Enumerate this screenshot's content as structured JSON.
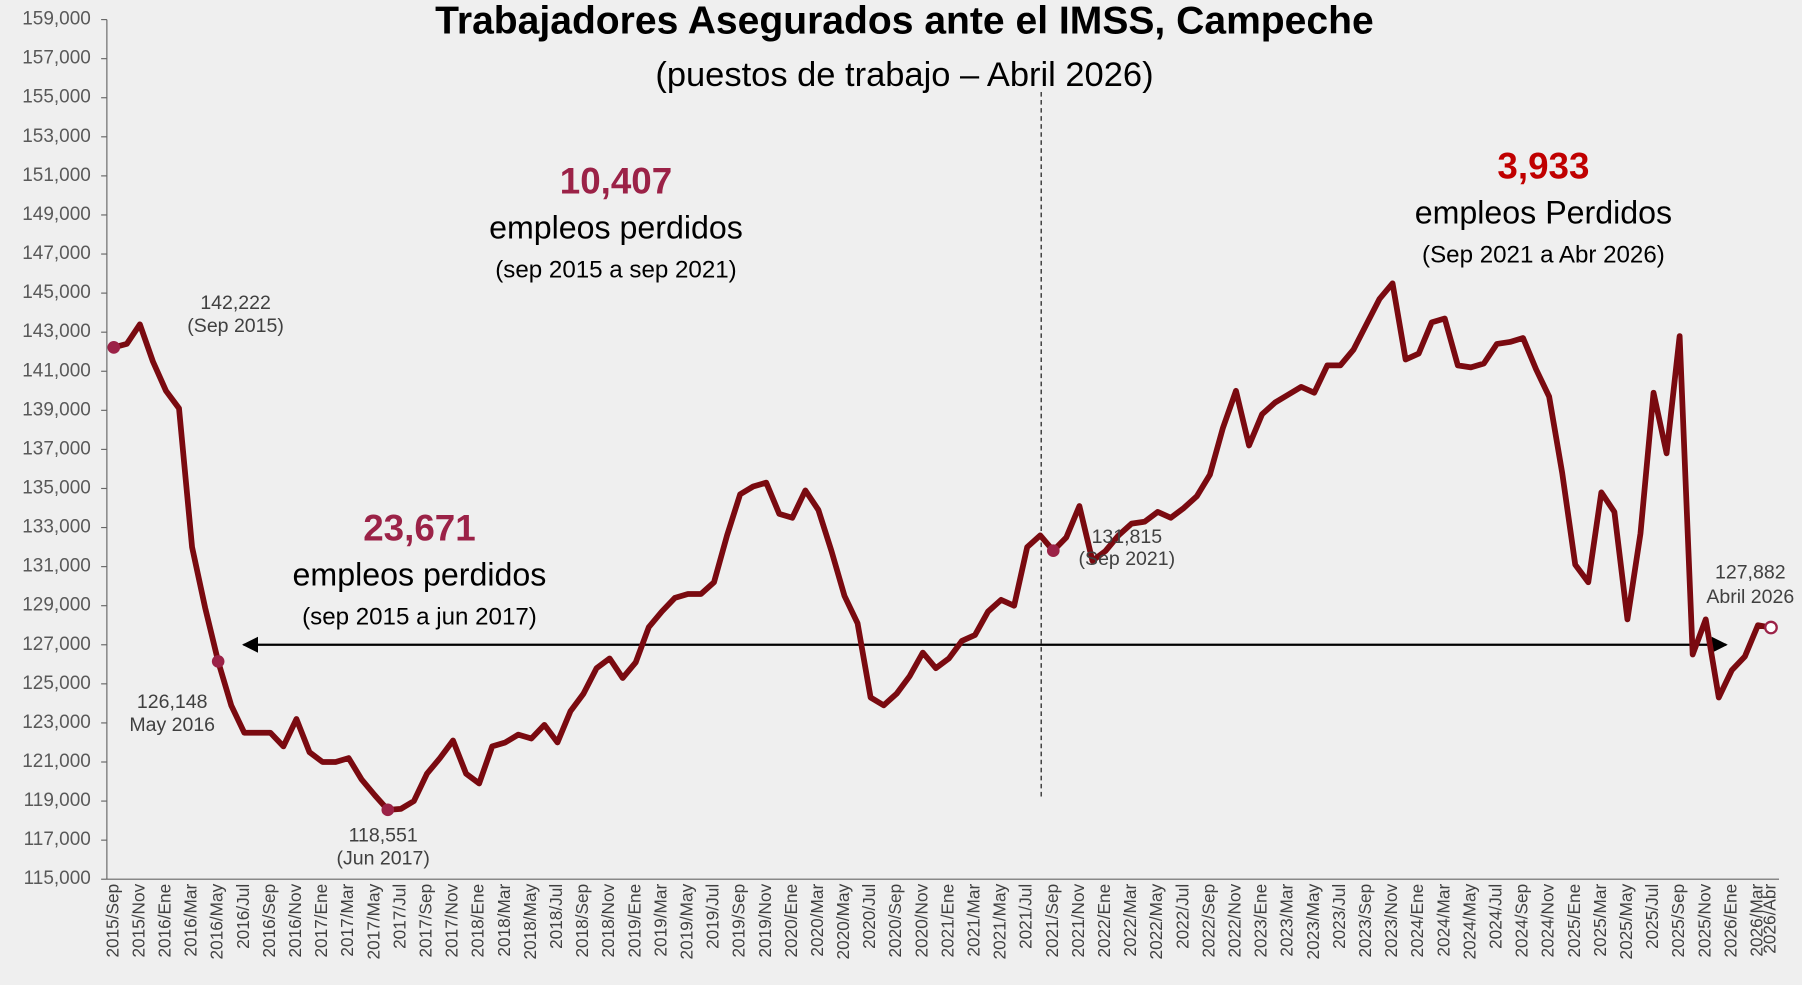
{
  "chart_data": {
    "type": "line",
    "title": "Trabajadores Asegurados ante el IMSS, Campeche",
    "subtitle": "(puestos de trabajo – Abril 2026)",
    "categories": [
      "2015/Sep",
      null,
      "2015/Nov",
      null,
      "2016/Ene",
      null,
      "2016/Mar",
      null,
      "2016/May",
      null,
      "2016/Jul",
      null,
      "2016/Sep",
      null,
      "2016/Nov",
      null,
      "2017/Ene",
      null,
      "2017/Mar",
      null,
      "2017/May",
      null,
      "2017/Jul",
      null,
      "2017/Sep",
      null,
      "2017/Nov",
      null,
      "2018/Ene",
      null,
      "2018/Mar",
      null,
      "2018/May",
      null,
      "2018/Jul",
      null,
      "2018/Sep",
      null,
      "2018/Nov",
      null,
      "2019/Ene",
      null,
      "2019/Mar",
      null,
      "2019/May",
      null,
      "2019/Jul",
      null,
      "2019/Sep",
      null,
      "2019/Nov",
      null,
      "2020/Ene",
      null,
      "2020/Mar",
      null,
      "2020/May",
      null,
      "2020/Jul",
      null,
      "2020/Sep",
      null,
      "2020/Nov",
      null,
      "2021/Ene",
      null,
      "2021/Mar",
      null,
      "2021/May",
      null,
      "2021/Jul",
      null,
      "2021/Sep",
      null,
      "2021/Nov",
      null,
      "2022/Ene",
      null,
      "2022/Mar",
      null,
      "2022/May",
      null,
      "2022/Jul",
      null,
      "2022/Sep",
      null,
      "2022/Nov",
      null,
      "2023/Ene",
      null,
      "2023/Mar",
      null,
      "2023/May",
      null,
      "2023/Jul",
      null,
      "2023/Sep",
      null,
      "2023/Nov",
      null,
      "2024/Ene",
      null,
      "2024/Mar",
      null,
      "2024/May",
      null,
      "2024/Jul",
      null,
      "2024/Sep",
      null,
      "2024/Nov",
      null,
      "2025/Ene",
      null,
      "2025/Mar",
      null,
      "2025/May",
      null,
      "2025/Jul",
      null,
      "2025/Sep",
      null,
      "2025/Nov",
      null,
      "2026/Ene",
      null,
      "2026/Mar",
      "2026/Abr"
    ],
    "series": [
      {
        "color": "#7a0a10",
        "values": [
          142222,
          142400,
          143400,
          141500,
          140000,
          139100,
          132000,
          128900,
          126148,
          123900,
          122500,
          122500,
          122500,
          121800,
          123200,
          121500,
          121000,
          121000,
          121200,
          120100,
          119300,
          118551,
          118600,
          119000,
          120400,
          121200,
          122100,
          120400,
          119900,
          121800,
          122000,
          122400,
          122200,
          122900,
          122000,
          123600,
          124500,
          125800,
          126300,
          125300,
          126100,
          127900,
          128700,
          129400,
          129600,
          129600,
          130200,
          132600,
          134700,
          135100,
          135300,
          133700,
          133500,
          134900,
          133900,
          131800,
          129500,
          128100,
          124300,
          123900,
          124500,
          125400,
          126600,
          125800,
          126300,
          127200,
          127500,
          128700,
          129300,
          129000,
          132000,
          132600,
          131815,
          132500,
          134100,
          131300,
          131800,
          132600,
          133200,
          133300,
          133800,
          133500,
          134000,
          134600,
          135700,
          138100,
          140000,
          137200,
          138800,
          139400,
          139800,
          140200,
          139900,
          141300,
          141300,
          142100,
          143400,
          144700,
          145500,
          141600,
          141900,
          143500,
          143700,
          141300,
          141200,
          141400,
          142400,
          142500,
          142700,
          141100,
          139700,
          135800,
          131100,
          130200,
          134800,
          133800,
          128300,
          132700,
          139900,
          136800,
          142800,
          126500,
          128300,
          124300,
          125700,
          126400,
          128000,
          127882
        ],
        "value_labels": [
          "142,222",
          null,
          null,
          null,
          null,
          null,
          null,
          null,
          "126,148",
          null,
          null,
          null,
          null,
          null,
          null,
          null,
          null,
          null,
          null,
          null,
          null,
          "118,551",
          null,
          null,
          null,
          null,
          null,
          null,
          null,
          null,
          null,
          null,
          null,
          null,
          null,
          null,
          null,
          null,
          null,
          null,
          null,
          null,
          null,
          null,
          null,
          null,
          null,
          null,
          null,
          null,
          null,
          null,
          null,
          null,
          null,
          null,
          null,
          null,
          null,
          null,
          null,
          null,
          null,
          null,
          null,
          null,
          null,
          null,
          null,
          null,
          null,
          null,
          "131,815",
          null,
          null,
          null,
          null,
          null,
          null,
          null,
          null,
          null,
          null,
          null,
          null,
          null,
          null,
          null,
          null,
          null,
          null,
          null,
          null,
          null,
          null,
          null,
          null,
          null,
          null,
          null,
          null,
          null,
          null,
          null,
          null,
          null,
          null,
          null,
          null,
          null,
          null,
          null,
          null,
          null,
          null,
          null,
          null,
          null,
          null,
          null,
          null,
          null,
          null,
          null,
          null,
          null,
          null,
          "127,882"
        ],
        "point_notes": [
          "(Sep 2015)",
          null,
          null,
          null,
          null,
          null,
          null,
          null,
          "May 2016",
          null,
          null,
          null,
          null,
          null,
          null,
          null,
          null,
          null,
          null,
          null,
          null,
          "(Jun 2017)",
          null,
          null,
          null,
          null,
          null,
          null,
          null,
          null,
          null,
          null,
          null,
          null,
          null,
          null,
          null,
          null,
          null,
          null,
          null,
          null,
          null,
          null,
          null,
          null,
          null,
          null,
          null,
          null,
          null,
          null,
          null,
          null,
          null,
          null,
          null,
          null,
          null,
          null,
          null,
          null,
          null,
          null,
          null,
          null,
          null,
          null,
          null,
          null,
          null,
          null,
          "(Sep 2021)",
          null,
          null,
          null,
          null,
          null,
          null,
          null,
          null,
          null,
          null,
          null,
          null,
          null,
          null,
          null,
          null,
          null,
          null,
          null,
          null,
          null,
          null,
          null,
          null,
          null,
          null,
          null,
          null,
          null,
          null,
          null,
          null,
          null,
          null,
          null,
          null,
          null,
          null,
          null,
          null,
          null,
          null,
          null,
          null,
          null,
          null,
          null,
          null,
          null,
          null,
          null,
          null,
          null,
          null,
          "Abril 2026"
        ]
      }
    ],
    "ylim": [
      115000,
      159000
    ],
    "yticks": [
      {
        "value": 115000,
        "label": "115,000"
      },
      {
        "value": 117000,
        "label": "117,000"
      },
      {
        "value": 119000,
        "label": "119,000"
      },
      {
        "value": 121000,
        "label": "121,000"
      },
      {
        "value": 123000,
        "label": "123,000"
      },
      {
        "value": 125000,
        "label": "125,000"
      },
      {
        "value": 127000,
        "label": "127,000"
      },
      {
        "value": 129000,
        "label": "129,000"
      },
      {
        "value": 131000,
        "label": "131,000"
      },
      {
        "value": 133000,
        "label": "133,000"
      },
      {
        "value": 135000,
        "label": "135,000"
      },
      {
        "value": 137000,
        "label": "137,000"
      },
      {
        "value": 139000,
        "label": "139,000"
      },
      {
        "value": 141000,
        "label": "141,000"
      },
      {
        "value": 143000,
        "label": "143,000"
      },
      {
        "value": 145000,
        "label": "145,000"
      },
      {
        "value": 147000,
        "label": "147,000"
      },
      {
        "value": 149000,
        "label": "149,000"
      },
      {
        "value": 151000,
        "label": "151,000"
      },
      {
        "value": 153000,
        "label": "153,000"
      },
      {
        "value": 155000,
        "label": "155,000"
      },
      {
        "value": 157000,
        "label": "157,000"
      },
      {
        "value": 159000,
        "label": "159,000"
      }
    ],
    "grid": false,
    "annotations": [
      {
        "number": "10,407",
        "text": "empleos perdidos",
        "period": "(sep 2015 a sep 2021)",
        "color": "#9b2247"
      },
      {
        "number": "23,671",
        "text": "empleos perdidos",
        "period": "(sep 2015 a jun 2017)",
        "color": "#9b2247"
      },
      {
        "number": "3,933",
        "text": "empleos Perdidos",
        "period": "(Sep 2021 a  Abr 2026)",
        "color": "#c00000"
      }
    ]
  }
}
